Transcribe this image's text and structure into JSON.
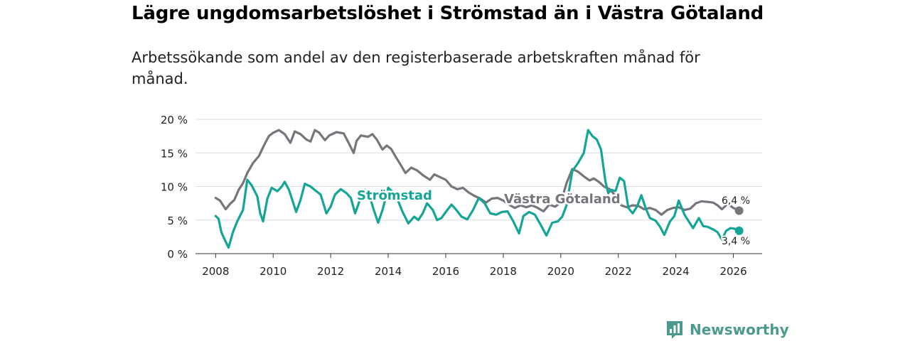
{
  "title": "Lägre ungdomsarbetslöshet i Strömstad än i Västra Götaland",
  "subtitle": "Arbetssökande som andel av den registerbaserade arbetskraften månad för månad.",
  "brand": {
    "name": "Newsworthy",
    "icon": "bar-chart-icon",
    "color": "#4a9b8e"
  },
  "colors": {
    "stromstad": "#14a596",
    "vg": "#76757b",
    "grid": "#dddddd"
  },
  "chart_data": {
    "type": "line",
    "title": "Lägre ungdomsarbetslöshet i Strömstad än i Västra Götaland",
    "xlabel": "",
    "ylabel": "",
    "xlim": [
      2007.3,
      2027.0
    ],
    "ylim": [
      0,
      20
    ],
    "x_ticks": [
      2008,
      2010,
      2012,
      2014,
      2016,
      2018,
      2020,
      2022,
      2024,
      2026
    ],
    "x_tick_labels": [
      "2008",
      "2010",
      "2012",
      "2014",
      "2016",
      "2018",
      "2020",
      "2022",
      "2024",
      "2026"
    ],
    "y_ticks": [
      0,
      5,
      10,
      15,
      20
    ],
    "y_tick_labels": [
      "0 %",
      "5 %",
      "10 %",
      "15 %",
      "20 %"
    ],
    "grid": true,
    "series": [
      {
        "name": "Västra Götaland",
        "label": "Västra Götaland",
        "end_label": "6,4 %",
        "points": [
          [
            2008.0,
            8.3
          ],
          [
            2008.15,
            7.9
          ],
          [
            2008.35,
            6.6
          ],
          [
            2008.5,
            7.4
          ],
          [
            2008.65,
            8.0
          ],
          [
            2008.8,
            9.5
          ],
          [
            2008.95,
            10.5
          ],
          [
            2009.1,
            12.0
          ],
          [
            2009.3,
            13.5
          ],
          [
            2009.5,
            14.5
          ],
          [
            2009.7,
            16.3
          ],
          [
            2009.85,
            17.5
          ],
          [
            2010.0,
            18.0
          ],
          [
            2010.2,
            18.4
          ],
          [
            2010.4,
            17.8
          ],
          [
            2010.6,
            16.5
          ],
          [
            2010.75,
            18.2
          ],
          [
            2010.95,
            17.8
          ],
          [
            2011.15,
            17.0
          ],
          [
            2011.3,
            16.7
          ],
          [
            2011.45,
            18.4
          ],
          [
            2011.6,
            18.0
          ],
          [
            2011.8,
            16.9
          ],
          [
            2011.95,
            17.6
          ],
          [
            2012.2,
            18.1
          ],
          [
            2012.45,
            17.9
          ],
          [
            2012.6,
            16.7
          ],
          [
            2012.8,
            15.0
          ],
          [
            2012.9,
            16.8
          ],
          [
            2013.05,
            17.6
          ],
          [
            2013.3,
            17.4
          ],
          [
            2013.45,
            17.8
          ],
          [
            2013.6,
            17.0
          ],
          [
            2013.8,
            15.5
          ],
          [
            2013.95,
            16.1
          ],
          [
            2014.1,
            15.6
          ],
          [
            2014.25,
            14.5
          ],
          [
            2014.45,
            13.1
          ],
          [
            2014.6,
            12.0
          ],
          [
            2014.8,
            12.8
          ],
          [
            2015.0,
            12.4
          ],
          [
            2015.2,
            11.7
          ],
          [
            2015.45,
            11.0
          ],
          [
            2015.6,
            11.8
          ],
          [
            2015.8,
            11.4
          ],
          [
            2016.0,
            11.0
          ],
          [
            2016.2,
            10.0
          ],
          [
            2016.4,
            9.6
          ],
          [
            2016.6,
            9.8
          ],
          [
            2016.8,
            9.1
          ],
          [
            2017.0,
            8.6
          ],
          [
            2017.2,
            8.2
          ],
          [
            2017.4,
            7.6
          ],
          [
            2017.6,
            8.2
          ],
          [
            2017.8,
            8.3
          ],
          [
            2018.0,
            7.9
          ],
          [
            2018.2,
            7.3
          ],
          [
            2018.4,
            6.8
          ],
          [
            2018.6,
            7.2
          ],
          [
            2018.8,
            6.9
          ],
          [
            2019.0,
            7.2
          ],
          [
            2019.2,
            6.8
          ],
          [
            2019.4,
            6.3
          ],
          [
            2019.6,
            7.3
          ],
          [
            2019.8,
            7.0
          ],
          [
            2020.0,
            7.6
          ],
          [
            2020.2,
            10.5
          ],
          [
            2020.4,
            12.6
          ],
          [
            2020.6,
            12.2
          ],
          [
            2020.8,
            11.5
          ],
          [
            2021.0,
            10.9
          ],
          [
            2021.15,
            11.2
          ],
          [
            2021.35,
            10.6
          ],
          [
            2021.5,
            10.0
          ],
          [
            2021.7,
            9.6
          ],
          [
            2021.9,
            8.6
          ],
          [
            2022.1,
            7.2
          ],
          [
            2022.3,
            6.9
          ],
          [
            2022.5,
            7.2
          ],
          [
            2022.7,
            7.1
          ],
          [
            2022.9,
            6.6
          ],
          [
            2023.1,
            6.8
          ],
          [
            2023.3,
            6.5
          ],
          [
            2023.5,
            5.8
          ],
          [
            2023.7,
            6.5
          ],
          [
            2023.9,
            6.8
          ],
          [
            2024.1,
            6.9
          ],
          [
            2024.3,
            6.5
          ],
          [
            2024.5,
            6.7
          ],
          [
            2024.7,
            7.5
          ],
          [
            2024.9,
            7.8
          ],
          [
            2025.1,
            7.7
          ],
          [
            2025.3,
            7.6
          ],
          [
            2025.45,
            7.2
          ],
          [
            2025.6,
            6.6
          ],
          [
            2025.8,
            7.4
          ],
          [
            2026.0,
            6.8
          ],
          [
            2026.2,
            6.4
          ]
        ]
      },
      {
        "name": "Strömstad",
        "label": "Strömstad",
        "end_label": "3,4 %",
        "points": [
          [
            2008.0,
            5.6
          ],
          [
            2008.1,
            5.2
          ],
          [
            2008.2,
            3.2
          ],
          [
            2008.3,
            2.2
          ],
          [
            2008.45,
            0.9
          ],
          [
            2008.6,
            3.2
          ],
          [
            2008.75,
            4.8
          ],
          [
            2008.95,
            6.5
          ],
          [
            2009.1,
            11.0
          ],
          [
            2009.25,
            10.2
          ],
          [
            2009.45,
            8.5
          ],
          [
            2009.55,
            6.0
          ],
          [
            2009.65,
            4.8
          ],
          [
            2009.8,
            8.2
          ],
          [
            2009.95,
            9.8
          ],
          [
            2010.15,
            9.3
          ],
          [
            2010.3,
            10.0
          ],
          [
            2010.4,
            10.7
          ],
          [
            2010.55,
            9.5
          ],
          [
            2010.8,
            6.2
          ],
          [
            2010.95,
            8.0
          ],
          [
            2011.1,
            10.4
          ],
          [
            2011.3,
            10.0
          ],
          [
            2011.5,
            9.3
          ],
          [
            2011.65,
            8.8
          ],
          [
            2011.85,
            6.0
          ],
          [
            2012.0,
            7.0
          ],
          [
            2012.15,
            8.8
          ],
          [
            2012.35,
            9.6
          ],
          [
            2012.55,
            9.0
          ],
          [
            2012.7,
            8.3
          ],
          [
            2012.85,
            6.0
          ],
          [
            2013.0,
            7.8
          ],
          [
            2013.2,
            9.5
          ],
          [
            2013.35,
            8.6
          ],
          [
            2013.5,
            6.5
          ],
          [
            2013.65,
            4.6
          ],
          [
            2013.8,
            6.5
          ],
          [
            2014.0,
            9.8
          ],
          [
            2014.2,
            9.0
          ],
          [
            2014.35,
            7.8
          ],
          [
            2014.5,
            6.2
          ],
          [
            2014.7,
            4.5
          ],
          [
            2014.9,
            5.5
          ],
          [
            2015.05,
            5.0
          ],
          [
            2015.2,
            6.0
          ],
          [
            2015.35,
            7.5
          ],
          [
            2015.55,
            6.5
          ],
          [
            2015.7,
            5.0
          ],
          [
            2015.85,
            5.3
          ],
          [
            2016.0,
            6.2
          ],
          [
            2016.2,
            7.3
          ],
          [
            2016.35,
            6.6
          ],
          [
            2016.55,
            5.5
          ],
          [
            2016.75,
            5.1
          ],
          [
            2016.95,
            6.5
          ],
          [
            2017.15,
            8.3
          ],
          [
            2017.35,
            7.5
          ],
          [
            2017.55,
            6.0
          ],
          [
            2017.75,
            5.8
          ],
          [
            2017.95,
            6.2
          ],
          [
            2018.15,
            6.3
          ],
          [
            2018.35,
            4.8
          ],
          [
            2018.55,
            3.0
          ],
          [
            2018.7,
            5.6
          ],
          [
            2018.9,
            6.2
          ],
          [
            2019.1,
            5.8
          ],
          [
            2019.3,
            4.3
          ],
          [
            2019.5,
            2.7
          ],
          [
            2019.7,
            4.6
          ],
          [
            2019.9,
            4.8
          ],
          [
            2020.05,
            5.5
          ],
          [
            2020.2,
            7.2
          ],
          [
            2020.4,
            12.3
          ],
          [
            2020.6,
            13.5
          ],
          [
            2020.8,
            15.0
          ],
          [
            2020.95,
            18.4
          ],
          [
            2021.1,
            17.5
          ],
          [
            2021.25,
            17.0
          ],
          [
            2021.4,
            15.5
          ],
          [
            2021.55,
            10.8
          ],
          [
            2021.65,
            9.0
          ],
          [
            2021.75,
            9.5
          ],
          [
            2021.9,
            9.3
          ],
          [
            2022.05,
            11.3
          ],
          [
            2022.2,
            10.8
          ],
          [
            2022.35,
            6.8
          ],
          [
            2022.5,
            6.0
          ],
          [
            2022.65,
            7.0
          ],
          [
            2022.8,
            8.7
          ],
          [
            2022.95,
            6.8
          ],
          [
            2023.1,
            5.3
          ],
          [
            2023.3,
            4.9
          ],
          [
            2023.45,
            4.0
          ],
          [
            2023.6,
            2.8
          ],
          [
            2023.8,
            4.8
          ],
          [
            2023.95,
            5.6
          ],
          [
            2024.1,
            7.9
          ],
          [
            2024.3,
            5.8
          ],
          [
            2024.45,
            4.8
          ],
          [
            2024.6,
            3.8
          ],
          [
            2024.8,
            5.3
          ],
          [
            2024.95,
            4.1
          ],
          [
            2025.1,
            4.0
          ],
          [
            2025.3,
            3.6
          ],
          [
            2025.45,
            3.2
          ],
          [
            2025.6,
            2.1
          ],
          [
            2025.75,
            3.4
          ],
          [
            2025.9,
            3.8
          ],
          [
            2026.05,
            3.7
          ],
          [
            2026.2,
            3.4
          ]
        ]
      }
    ]
  }
}
